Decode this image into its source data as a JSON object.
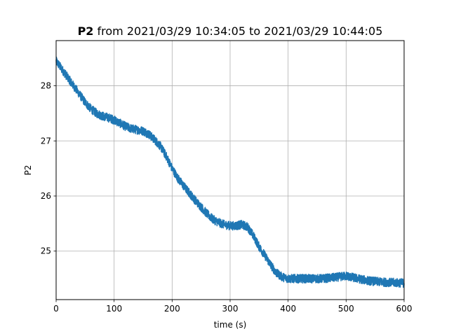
{
  "chart_data": {
    "type": "line",
    "title_bold": "P2",
    "title_rest": " from 2021/03/29 10:34:05 to 2021/03/29 10:44:05",
    "xlabel": "time (s)",
    "ylabel": "P2",
    "xlim": [
      0,
      600
    ],
    "ylim": [
      24.12,
      28.82
    ],
    "xticks": [
      0,
      100,
      200,
      300,
      400,
      500,
      600
    ],
    "yticks": [
      25,
      26,
      27,
      28
    ],
    "grid": true,
    "line_color": "#1f77b4",
    "series": [
      {
        "trend_x": [
          0,
          10,
          20,
          30,
          40,
          50,
          60,
          70,
          80,
          90,
          100,
          110,
          120,
          130,
          140,
          150,
          160,
          170,
          180,
          190,
          200,
          210,
          220,
          230,
          240,
          250,
          260,
          270,
          280,
          290,
          300,
          310,
          320,
          330,
          340,
          350,
          360,
          370,
          380,
          390,
          400,
          420,
          440,
          460,
          480,
          500,
          520,
          540,
          560,
          580,
          600
        ],
        "trend_y": [
          28.45,
          28.3,
          28.15,
          28.0,
          27.85,
          27.7,
          27.58,
          27.5,
          27.45,
          27.42,
          27.38,
          27.32,
          27.26,
          27.22,
          27.2,
          27.18,
          27.12,
          27.02,
          26.9,
          26.72,
          26.5,
          26.32,
          26.18,
          26.05,
          25.92,
          25.8,
          25.68,
          25.58,
          25.52,
          25.48,
          25.46,
          25.46,
          25.48,
          25.44,
          25.28,
          25.08,
          24.92,
          24.75,
          24.6,
          24.53,
          24.5,
          24.5,
          24.5,
          24.5,
          24.52,
          24.55,
          24.5,
          24.46,
          24.44,
          24.43,
          24.42
        ],
        "noise_amplitude": 0.08
      }
    ]
  }
}
